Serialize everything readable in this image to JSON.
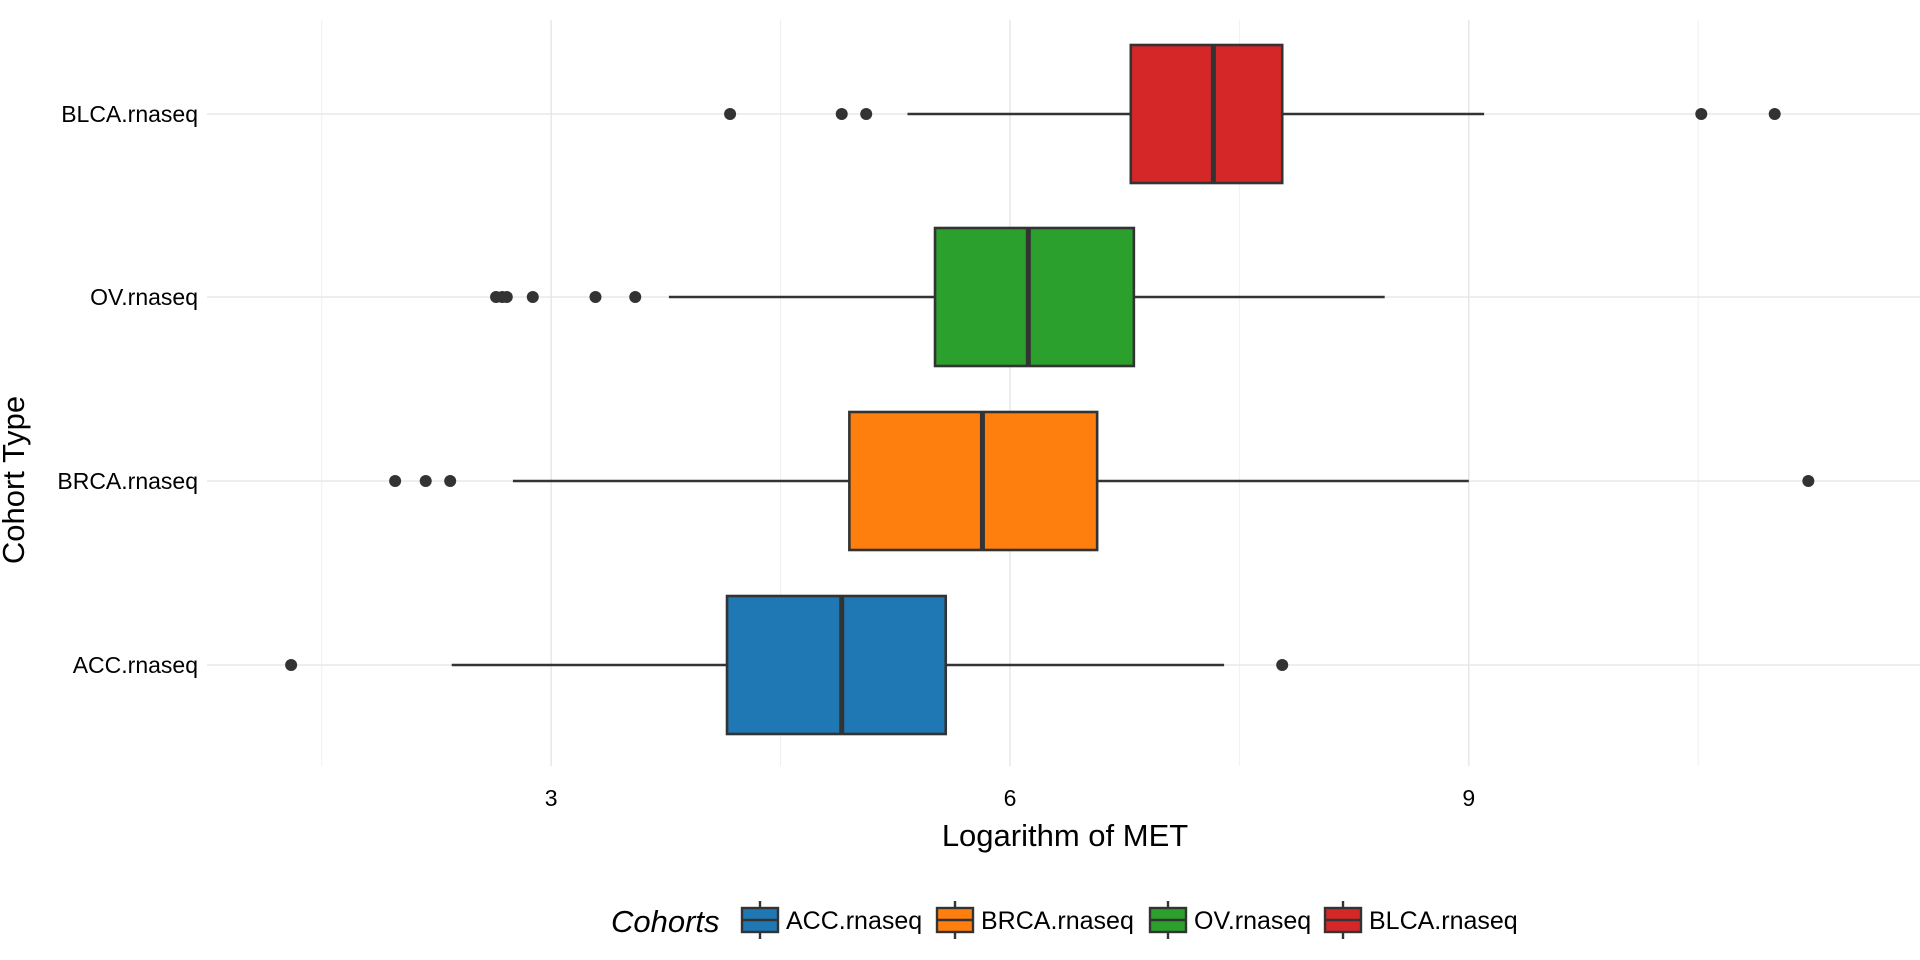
{
  "chart_data": {
    "type": "boxplot",
    "orientation": "horizontal",
    "title": "",
    "xlabel": "Logarithm of MET",
    "ylabel": "Cohort Type",
    "xlim": [
      0.75,
      11.95
    ],
    "xticks": [
      3,
      6,
      9
    ],
    "xtick_labels": [
      "3",
      "6",
      "9"
    ],
    "grid": true,
    "legend_position": "bottom",
    "legend_title": "Cohorts",
    "categories": [
      "ACC.rnaseq",
      "BRCA.rnaseq",
      "OV.rnaseq",
      "BLCA.rnaseq"
    ],
    "series": [
      {
        "name": "ACC.rnaseq",
        "color": "#1f77b4",
        "whisker_low": 2.35,
        "q1": 4.15,
        "median": 4.9,
        "q3": 5.58,
        "whisker_high": 7.4,
        "outliers": [
          1.3,
          7.78
        ]
      },
      {
        "name": "BRCA.rnaseq",
        "color": "#ff7f0e",
        "whisker_low": 2.75,
        "q1": 4.95,
        "median": 5.82,
        "q3": 6.57,
        "whisker_high": 9.0,
        "outliers": [
          1.98,
          2.18,
          2.34,
          11.22
        ]
      },
      {
        "name": "OV.rnaseq",
        "color": "#2ca02c",
        "whisker_low": 3.77,
        "q1": 5.51,
        "median": 6.12,
        "q3": 6.81,
        "whisker_high": 8.45,
        "outliers": [
          2.64,
          2.68,
          2.71,
          2.88,
          3.29,
          3.55
        ]
      },
      {
        "name": "BLCA.rnaseq",
        "color": "#d62728",
        "whisker_low": 5.33,
        "q1": 6.79,
        "median": 7.33,
        "q3": 7.78,
        "whisker_high": 9.1,
        "outliers": [
          4.17,
          4.9,
          5.06,
          10.52,
          11.0
        ]
      }
    ]
  }
}
